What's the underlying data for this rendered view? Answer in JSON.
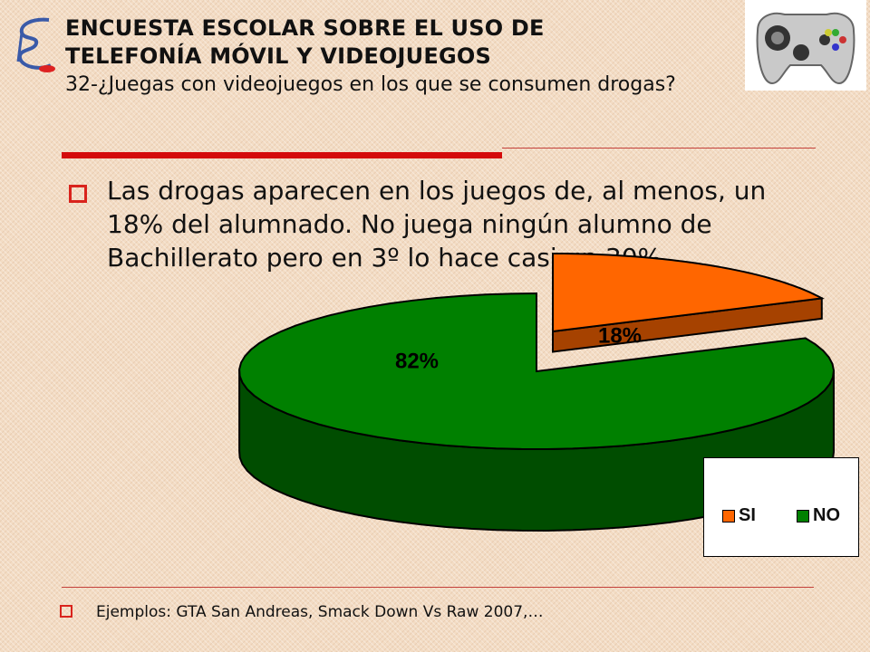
{
  "header": {
    "title_line1": "ENCUESTA ESCOLAR SOBRE EL USO DE",
    "title_line2": "TELEFONÍA MÓVIL Y VIDEOJUEGOS",
    "question": "32-¿Juegas con videojuegos en los que se consumen drogas?"
  },
  "main_bullet": "Las drogas aparecen en los juegos de, al menos, un 18% del alumnado. No juega ningún alumno de Bachillerato pero en 3º lo hace casi un 30%.",
  "footer_bullet": "Ejemplos: GTA San Andreas, Smack Down Vs Raw 2007,…",
  "colors": {
    "accent_red": "#d40b0b",
    "bullet_red": "#d9231c",
    "si": "#ff6600",
    "no": "#008000"
  },
  "chart_data": {
    "type": "pie",
    "style": "3d-exploded",
    "categories": [
      "SI",
      "NO"
    ],
    "values": [
      18,
      82
    ],
    "data_labels": [
      "18%",
      "82%"
    ],
    "legend": {
      "placement": "bottom-right",
      "entries": [
        "SI",
        "NO"
      ]
    }
  }
}
